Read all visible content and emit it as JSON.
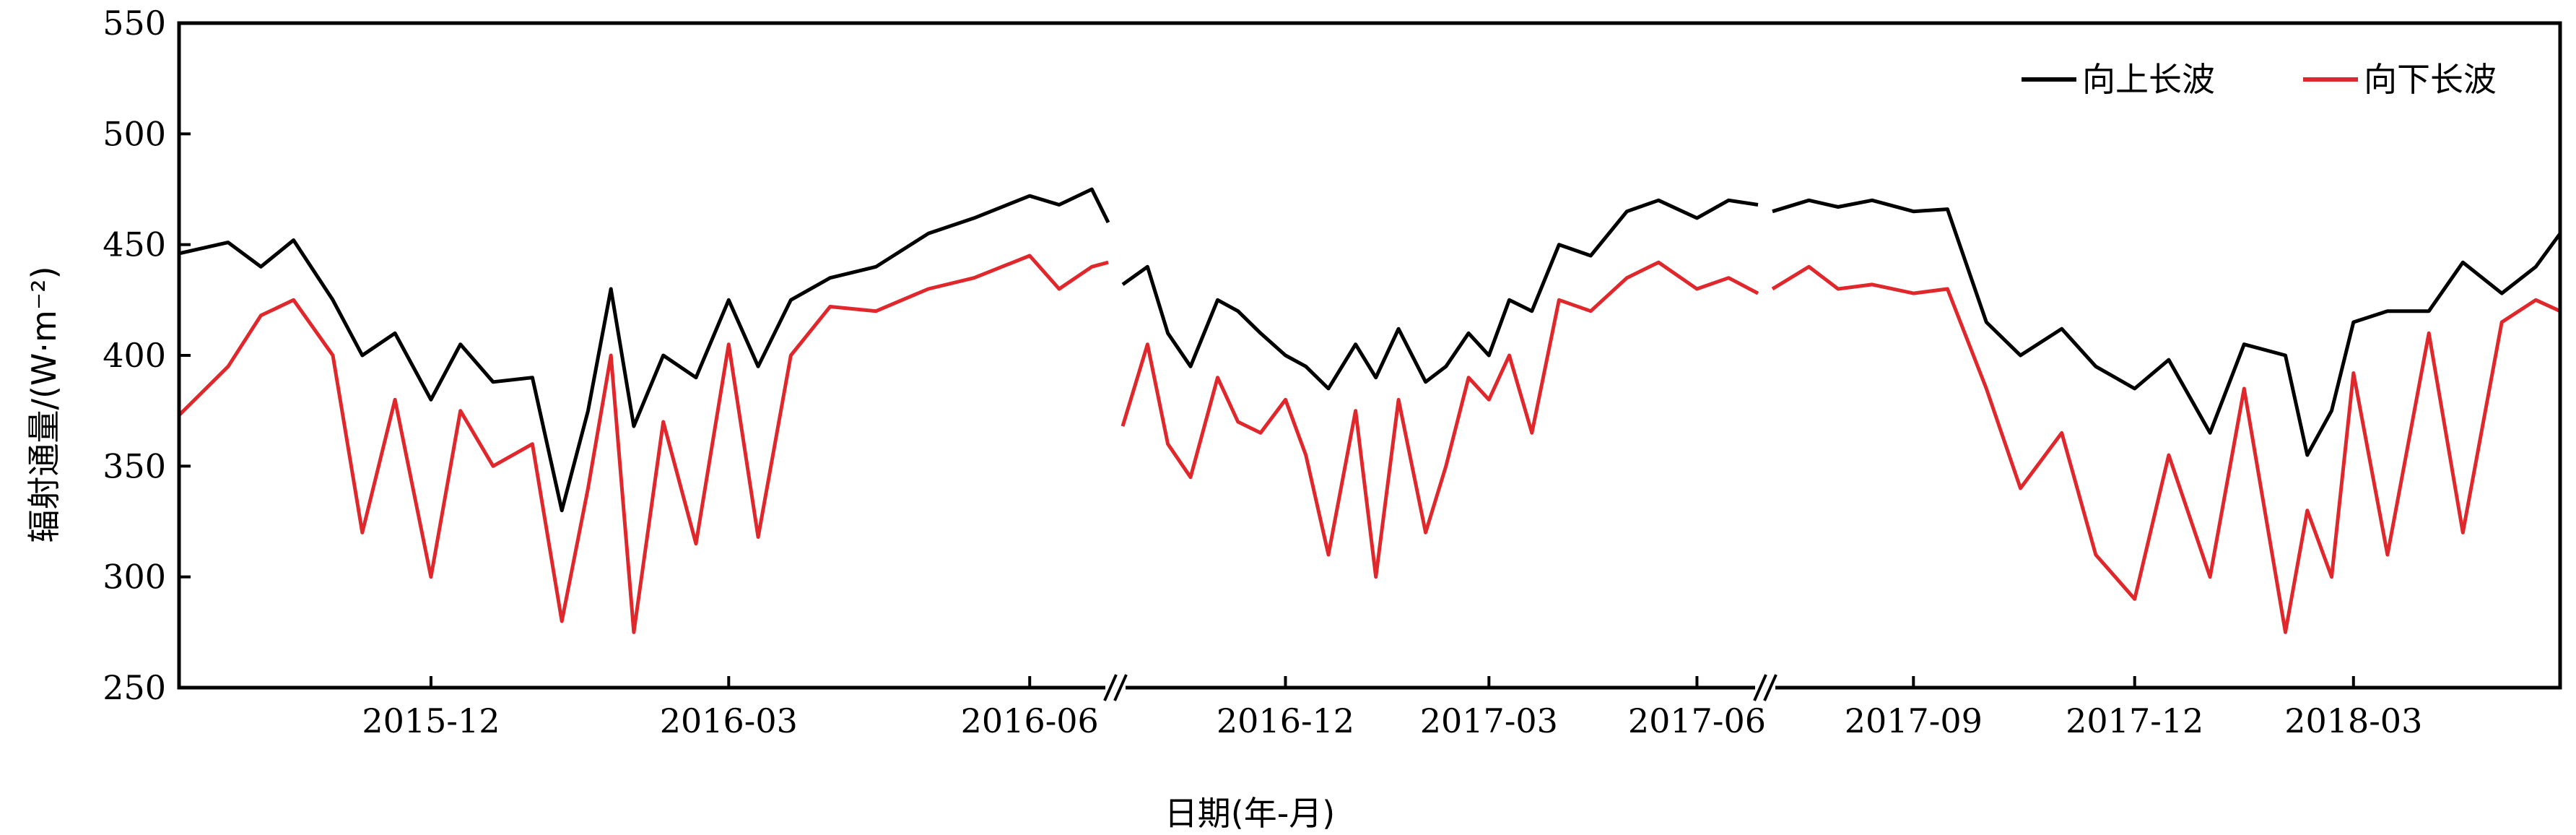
{
  "chart_data": {
    "type": "line",
    "title": "",
    "xlabel": "日期(年-月)",
    "ylabel": "辐射通量/(W·m⁻²)",
    "ylim": [
      250,
      550
    ],
    "yticks": [
      250,
      300,
      350,
      400,
      450,
      500,
      550
    ],
    "grid": false,
    "legend": "top-right",
    "broken_x_axis": true,
    "segments": [
      {
        "start": "2015-09-15",
        "end": "2016-06-25",
        "ticks": [
          "2015-12",
          "2016-03",
          "2016-06"
        ]
      },
      {
        "start": "2016-09-20",
        "end": "2017-06-28",
        "ticks": [
          "2016-12",
          "2017-03",
          "2017-06"
        ]
      },
      {
        "start": "2017-07-05",
        "end": "2018-05-25",
        "ticks": [
          "2017-09",
          "2017-12",
          "2018-03"
        ]
      }
    ],
    "series": [
      {
        "name": "向上长波",
        "color": "#000000",
        "segments": [
          [
            [
              "2015-09-15",
              446
            ],
            [
              "2015-09-30",
              451
            ],
            [
              "2015-10-10",
              440
            ],
            [
              "2015-10-20",
              452
            ],
            [
              "2015-11-01",
              425
            ],
            [
              "2015-11-10",
              400
            ],
            [
              "2015-11-20",
              410
            ],
            [
              "2015-12-01",
              380
            ],
            [
              "2015-12-10",
              405
            ],
            [
              "2015-12-20",
              388
            ],
            [
              "2016-01-01",
              390
            ],
            [
              "2016-01-10",
              330
            ],
            [
              "2016-01-18",
              375
            ],
            [
              "2016-01-25",
              430
            ],
            [
              "2016-02-01",
              368
            ],
            [
              "2016-02-10",
              400
            ],
            [
              "2016-02-20",
              390
            ],
            [
              "2016-03-01",
              425
            ],
            [
              "2016-03-10",
              395
            ],
            [
              "2016-03-20",
              425
            ],
            [
              "2016-04-01",
              435
            ],
            [
              "2016-04-15",
              440
            ],
            [
              "2016-05-01",
              455
            ],
            [
              "2016-05-15",
              462
            ],
            [
              "2016-06-01",
              472
            ],
            [
              "2016-06-10",
              468
            ],
            [
              "2016-06-20",
              475
            ],
            [
              "2016-06-25",
              460
            ]
          ],
          [
            [
              "2016-09-20",
              432
            ],
            [
              "2016-10-01",
              440
            ],
            [
              "2016-10-10",
              410
            ],
            [
              "2016-10-20",
              395
            ],
            [
              "2016-11-01",
              425
            ],
            [
              "2016-11-10",
              420
            ],
            [
              "2016-11-20",
              410
            ],
            [
              "2016-12-01",
              400
            ],
            [
              "2016-12-10",
              395
            ],
            [
              "2016-12-20",
              385
            ],
            [
              "2017-01-01",
              405
            ],
            [
              "2017-01-10",
              390
            ],
            [
              "2017-01-20",
              412
            ],
            [
              "2017-02-01",
              388
            ],
            [
              "2017-02-10",
              395
            ],
            [
              "2017-02-20",
              410
            ],
            [
              "2017-03-01",
              400
            ],
            [
              "2017-03-10",
              425
            ],
            [
              "2017-03-20",
              420
            ],
            [
              "2017-04-01",
              450
            ],
            [
              "2017-04-15",
              445
            ],
            [
              "2017-05-01",
              465
            ],
            [
              "2017-05-15",
              470
            ],
            [
              "2017-06-01",
              462
            ],
            [
              "2017-06-15",
              470
            ],
            [
              "2017-06-28",
              468
            ]
          ],
          [
            [
              "2017-07-05",
              465
            ],
            [
              "2017-07-20",
              470
            ],
            [
              "2017-08-01",
              467
            ],
            [
              "2017-08-15",
              470
            ],
            [
              "2017-09-01",
              465
            ],
            [
              "2017-09-15",
              466
            ],
            [
              "2017-10-01",
              415
            ],
            [
              "2017-10-15",
              400
            ],
            [
              "2017-11-01",
              412
            ],
            [
              "2017-11-15",
              395
            ],
            [
              "2017-12-01",
              385
            ],
            [
              "2017-12-15",
              398
            ],
            [
              "2018-01-01",
              365
            ],
            [
              "2018-01-15",
              405
            ],
            [
              "2018-02-01",
              400
            ],
            [
              "2018-02-10",
              355
            ],
            [
              "2018-02-20",
              375
            ],
            [
              "2018-03-01",
              415
            ],
            [
              "2018-03-15",
              420
            ],
            [
              "2018-04-01",
              420
            ],
            [
              "2018-04-15",
              442
            ],
            [
              "2018-05-01",
              428
            ],
            [
              "2018-05-15",
              440
            ],
            [
              "2018-05-25",
              455
            ]
          ]
        ]
      },
      {
        "name": "向下长波",
        "color": "#e0282c",
        "segments": [
          [
            [
              "2015-09-15",
              373
            ],
            [
              "2015-09-30",
              395
            ],
            [
              "2015-10-10",
              418
            ],
            [
              "2015-10-20",
              425
            ],
            [
              "2015-11-01",
              400
            ],
            [
              "2015-11-10",
              320
            ],
            [
              "2015-11-20",
              380
            ],
            [
              "2015-12-01",
              300
            ],
            [
              "2015-12-10",
              375
            ],
            [
              "2015-12-20",
              350
            ],
            [
              "2016-01-01",
              360
            ],
            [
              "2016-01-10",
              280
            ],
            [
              "2016-01-18",
              340
            ],
            [
              "2016-01-25",
              400
            ],
            [
              "2016-02-01",
              275
            ],
            [
              "2016-02-10",
              370
            ],
            [
              "2016-02-20",
              315
            ],
            [
              "2016-03-01",
              405
            ],
            [
              "2016-03-10",
              318
            ],
            [
              "2016-03-20",
              400
            ],
            [
              "2016-04-01",
              422
            ],
            [
              "2016-04-15",
              420
            ],
            [
              "2016-05-01",
              430
            ],
            [
              "2016-05-15",
              435
            ],
            [
              "2016-06-01",
              445
            ],
            [
              "2016-06-10",
              430
            ],
            [
              "2016-06-20",
              440
            ],
            [
              "2016-06-25",
              442
            ]
          ],
          [
            [
              "2016-09-20",
              368
            ],
            [
              "2016-10-01",
              405
            ],
            [
              "2016-10-10",
              360
            ],
            [
              "2016-10-20",
              345
            ],
            [
              "2016-11-01",
              390
            ],
            [
              "2016-11-10",
              370
            ],
            [
              "2016-11-20",
              365
            ],
            [
              "2016-12-01",
              380
            ],
            [
              "2016-12-10",
              355
            ],
            [
              "2016-12-20",
              310
            ],
            [
              "2017-01-01",
              375
            ],
            [
              "2017-01-10",
              300
            ],
            [
              "2017-01-20",
              380
            ],
            [
              "2017-02-01",
              320
            ],
            [
              "2017-02-10",
              350
            ],
            [
              "2017-02-20",
              390
            ],
            [
              "2017-03-01",
              380
            ],
            [
              "2017-03-10",
              400
            ],
            [
              "2017-03-20",
              365
            ],
            [
              "2017-04-01",
              425
            ],
            [
              "2017-04-15",
              420
            ],
            [
              "2017-05-01",
              435
            ],
            [
              "2017-05-15",
              442
            ],
            [
              "2017-06-01",
              430
            ],
            [
              "2017-06-15",
              435
            ],
            [
              "2017-06-28",
              428
            ]
          ],
          [
            [
              "2017-07-05",
              430
            ],
            [
              "2017-07-20",
              440
            ],
            [
              "2017-08-01",
              430
            ],
            [
              "2017-08-15",
              432
            ],
            [
              "2017-09-01",
              428
            ],
            [
              "2017-09-15",
              430
            ],
            [
              "2017-10-01",
              385
            ],
            [
              "2017-10-15",
              340
            ],
            [
              "2017-11-01",
              365
            ],
            [
              "2017-11-15",
              310
            ],
            [
              "2017-12-01",
              290
            ],
            [
              "2017-12-15",
              355
            ],
            [
              "2018-01-01",
              300
            ],
            [
              "2018-01-15",
              385
            ],
            [
              "2018-02-01",
              275
            ],
            [
              "2018-02-10",
              330
            ],
            [
              "2018-02-20",
              300
            ],
            [
              "2018-03-01",
              392
            ],
            [
              "2018-03-15",
              310
            ],
            [
              "2018-04-01",
              410
            ],
            [
              "2018-04-15",
              320
            ],
            [
              "2018-05-01",
              415
            ],
            [
              "2018-05-15",
              425
            ],
            [
              "2018-05-25",
              420
            ]
          ]
        ]
      }
    ]
  }
}
